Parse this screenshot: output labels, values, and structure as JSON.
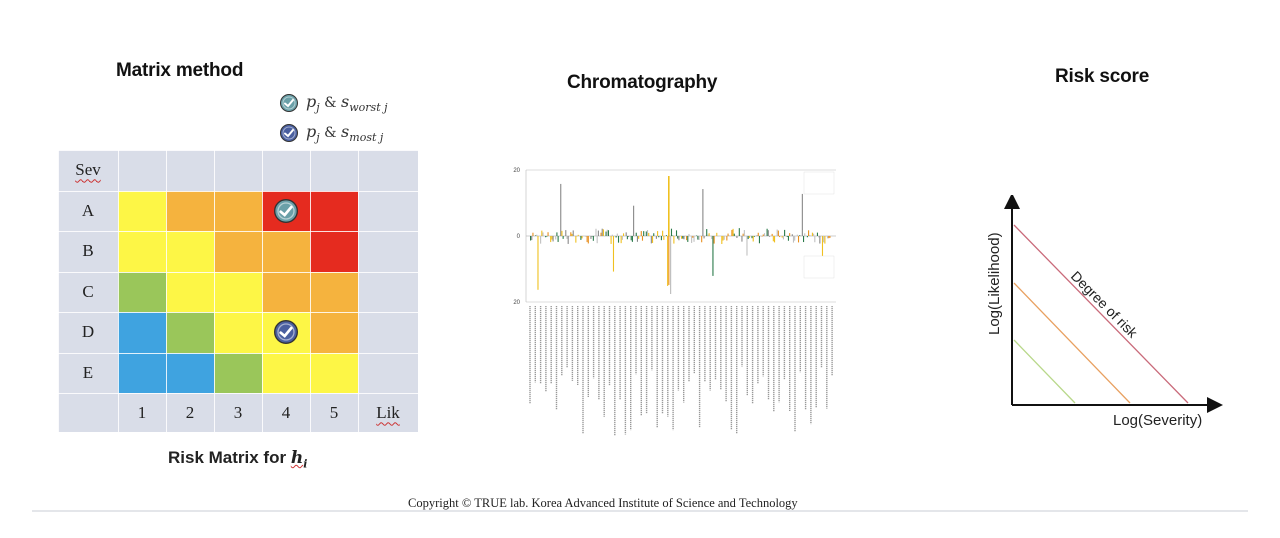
{
  "panels": {
    "matrix_title": "Matrix method",
    "chromatography_title": "Chromatography",
    "risk_title": "Risk score"
  },
  "legend": [
    {
      "var": "p",
      "sub": "j",
      "amp": "&",
      "s": "s",
      "ssub": "worst j",
      "color": "#6aa0a8"
    },
    {
      "var": "p",
      "sub": "j",
      "amp": "&",
      "s": "s",
      "ssub": "most j",
      "color": "#4a5fa0"
    }
  ],
  "matrix": {
    "sev_label": "Sev",
    "lik_label": "Lik",
    "rows": [
      "A",
      "B",
      "C",
      "D",
      "E"
    ],
    "cols": [
      "1",
      "2",
      "3",
      "4",
      "5"
    ],
    "colors": {
      "yellow": "#fdf646",
      "orange": "#f5b33e",
      "red": "#e52b1f",
      "green": "#9ac65a",
      "blue": "#3fa3e0"
    },
    "grid": [
      [
        "yellow",
        "orange",
        "orange",
        "red",
        "red"
      ],
      [
        "yellow",
        "yellow",
        "orange",
        "orange",
        "red"
      ],
      [
        "green",
        "yellow",
        "yellow",
        "orange",
        "orange"
      ],
      [
        "blue",
        "green",
        "yellow",
        "yellow",
        "orange"
      ],
      [
        "blue",
        "blue",
        "green",
        "yellow",
        "yellow"
      ]
    ],
    "markers": [
      {
        "row": 0,
        "col": 3,
        "kind": "worst"
      },
      {
        "row": 3,
        "col": 3,
        "kind": "most"
      }
    ],
    "caption_prefix": "Risk Matrix for ",
    "caption_var": "h",
    "caption_sub": "i"
  },
  "chromatography": {
    "y_ticks": [
      "20",
      "0",
      "20"
    ]
  },
  "risk_score": {
    "ylabel": "Log(Likelihood)",
    "xlabel": "Log(Severity)",
    "line_label": "Degree of risk",
    "line_colors": [
      "#c96a7a",
      "#e8a060",
      "#b8d88a"
    ]
  },
  "footer": {
    "copyright": "Copyright © TRUE lab. Korea Advanced Institute of Science and Technology"
  }
}
